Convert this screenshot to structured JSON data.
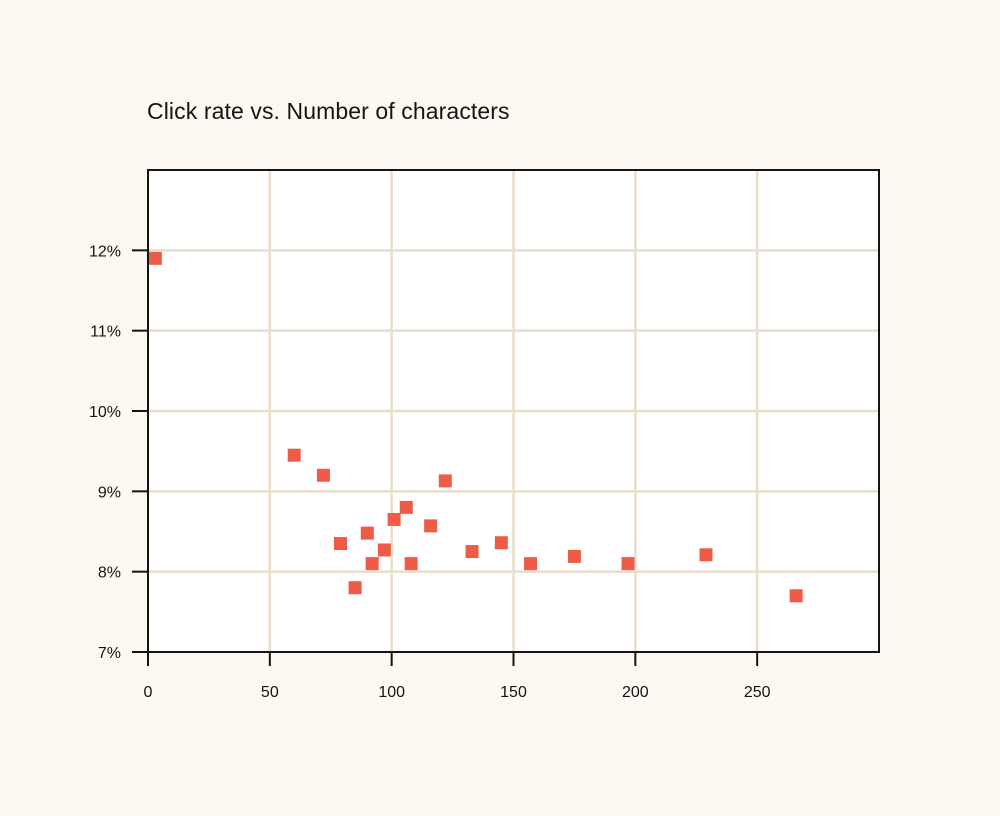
{
  "chart_data": {
    "type": "scatter",
    "title": "Click rate vs. Number of characters",
    "xlabel": "",
    "ylabel": "",
    "xlim": [
      0,
      300
    ],
    "ylim": [
      7,
      13
    ],
    "x_ticks": [
      0,
      50,
      100,
      150,
      200,
      250
    ],
    "x_tick_labels": [
      "0",
      "50",
      "100",
      "150",
      "200",
      "250"
    ],
    "y_ticks": [
      7,
      8,
      9,
      10,
      11,
      12
    ],
    "y_tick_labels": [
      "7%",
      "8%",
      "9%",
      "10%",
      "11%",
      "12%"
    ],
    "grid": true,
    "marker": "square",
    "colors": {
      "background": "#fdf8f1",
      "plot_background": "#ffffff",
      "grid": "#e8ddca",
      "axis": "#141413",
      "point": "#ee5c47"
    },
    "points": [
      {
        "x": 3,
        "y": 11.9
      },
      {
        "x": 60,
        "y": 9.45
      },
      {
        "x": 72,
        "y": 9.2
      },
      {
        "x": 79,
        "y": 8.35
      },
      {
        "x": 85,
        "y": 7.8
      },
      {
        "x": 90,
        "y": 8.48
      },
      {
        "x": 92,
        "y": 8.1
      },
      {
        "x": 97,
        "y": 8.27
      },
      {
        "x": 101,
        "y": 8.65
      },
      {
        "x": 106,
        "y": 8.8
      },
      {
        "x": 108,
        "y": 8.1
      },
      {
        "x": 116,
        "y": 8.57
      },
      {
        "x": 122,
        "y": 9.13
      },
      {
        "x": 133,
        "y": 8.25
      },
      {
        "x": 145,
        "y": 8.36
      },
      {
        "x": 157,
        "y": 8.1
      },
      {
        "x": 175,
        "y": 8.19
      },
      {
        "x": 197,
        "y": 8.1
      },
      {
        "x": 229,
        "y": 8.21
      },
      {
        "x": 266,
        "y": 7.7
      }
    ]
  }
}
